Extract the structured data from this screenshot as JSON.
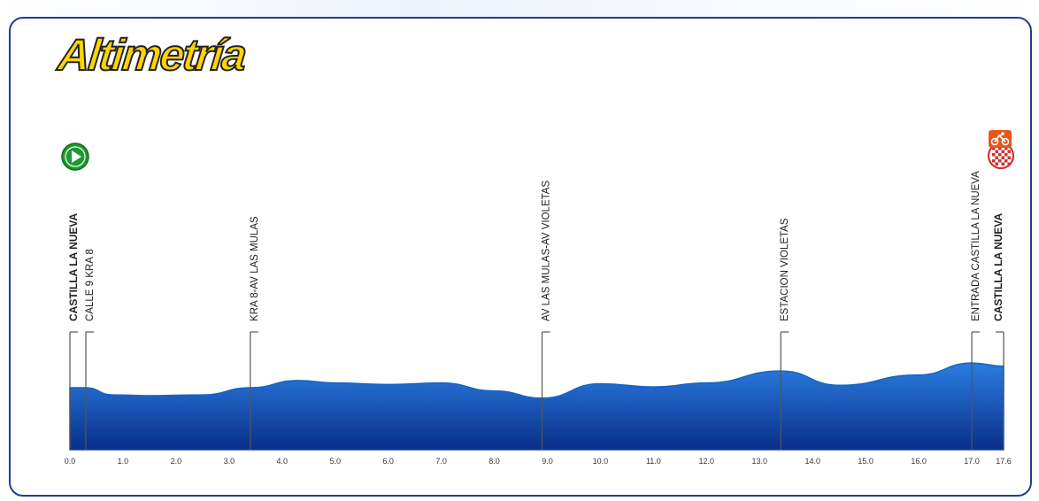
{
  "title": "Altimetría",
  "chart_data": {
    "type": "area",
    "title": "Altimetría",
    "xlabel": "",
    "ylabel": "",
    "x_ticks": [
      "0.0",
      "1.0",
      "2.0",
      "3.0",
      "4.0",
      "5.0",
      "6.0",
      "7.0",
      "8.0",
      "9.0",
      "10.0",
      "11.0",
      "12.0",
      "13.0",
      "14.0",
      "15.0",
      "16.0",
      "17.0",
      "17.6"
    ],
    "xlim": [
      0,
      17.6
    ],
    "grid": false,
    "profile_color": "#1565c0",
    "x": [
      0.0,
      0.3,
      0.8,
      1.5,
      2.5,
      3.4,
      4.3,
      5.0,
      6.0,
      7.0,
      8.0,
      8.9,
      10.0,
      11.0,
      12.0,
      13.4,
      14.5,
      16.0,
      17.0,
      17.6
    ],
    "y": [
      4.9,
      4.9,
      4.0,
      3.9,
      4.0,
      4.9,
      5.8,
      5.5,
      5.3,
      5.5,
      4.5,
      3.6,
      5.4,
      5.0,
      5.5,
      7.0,
      5.2,
      6.5,
      8.0,
      7.6
    ],
    "waypoints": [
      {
        "km": 0.0,
        "label": "CASTILLA LA NUEVA",
        "bold": true
      },
      {
        "km": 0.3,
        "label": "CALLE 9 KRA 8",
        "bold": false
      },
      {
        "km": 3.4,
        "label": "KRA 8-AV LAS MULAS",
        "bold": false
      },
      {
        "km": 8.9,
        "label": "AV LAS MULAS-AV VIOLETAS",
        "bold": false
      },
      {
        "km": 13.4,
        "label": "ESTACION VIOLETAS",
        "bold": false
      },
      {
        "km": 17.0,
        "label": "ENTRADA CASTILLA LA NUEVA",
        "bold": false
      },
      {
        "km": 17.6,
        "label": "CASTILLA LA NUEVA",
        "bold": true
      }
    ],
    "icons": [
      {
        "name": "start-icon",
        "color": "#1e9a2e"
      },
      {
        "name": "finish-flag-icon",
        "color": "#d32f2f"
      },
      {
        "name": "cycling-icon",
        "color": "#e8561c"
      }
    ]
  }
}
